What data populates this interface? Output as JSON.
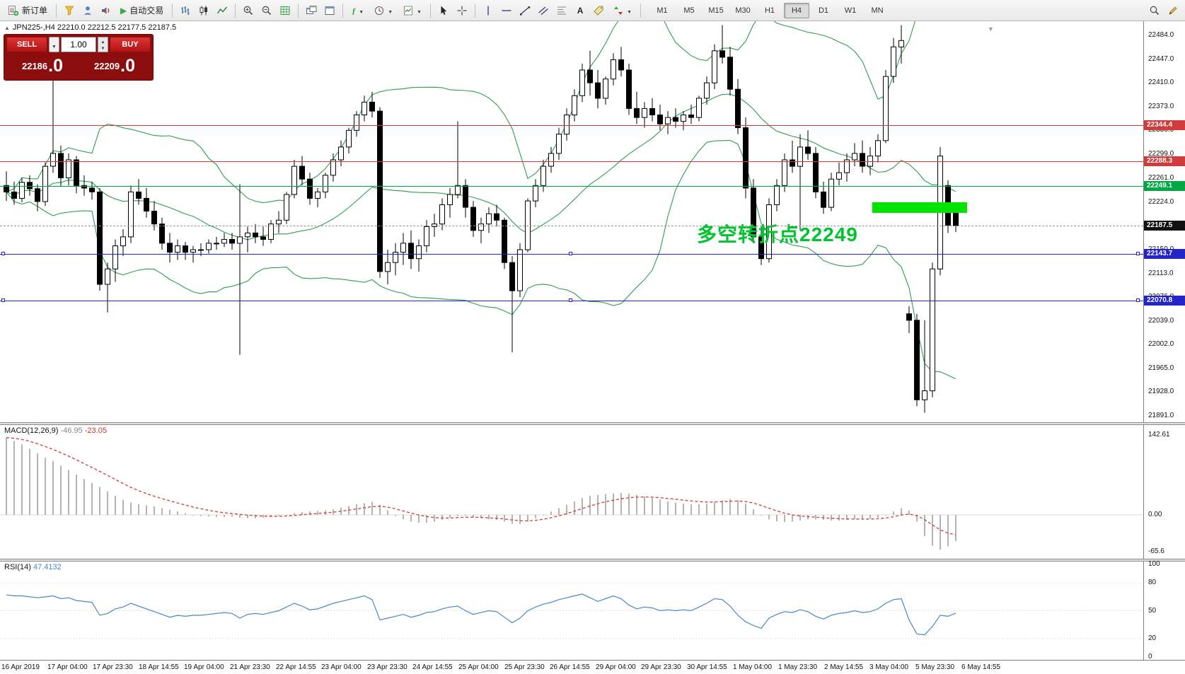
{
  "toolbar": {
    "new_order_label": "新订单",
    "autotrading_label": "自动交易",
    "timeframes": [
      "M1",
      "M5",
      "M15",
      "M30",
      "H1",
      "H4",
      "D1",
      "W1",
      "MN"
    ],
    "active_timeframe": "H4",
    "icons": [
      "new-order",
      "funnel",
      "profile",
      "sound",
      "autotrading-play",
      "bar-chart",
      "candlestick-chart",
      "line-chart",
      "zoom-in",
      "zoom-out",
      "grid",
      "tile-windows",
      "new-window",
      "indicators",
      "periods",
      "templates",
      "cursor",
      "crosshair",
      "vertical-line",
      "horizontal-line",
      "trendline",
      "channel",
      "fibonacci",
      "text",
      "label",
      "arrows",
      "search",
      "edit"
    ]
  },
  "chart": {
    "caption": "JPN225-,H4 22210.0 22212.5 22177.5 22187.5",
    "symbol": "JPN225-",
    "period": "H4",
    "annotation": "多空转折点22249",
    "trade_panel": {
      "sell_label": "SELL",
      "buy_label": "BUY",
      "volume": "1.00",
      "sell_price": "22186",
      "sell_frac": ".0",
      "buy_price": "22209",
      "buy_frac": ".0"
    }
  },
  "chart_data": {
    "type": "candlestick",
    "symbol": "JPN225-",
    "timeframe": "H4",
    "price_axis": {
      "top": 22484.0,
      "bottom": 21891.0,
      "step": 37.0
    },
    "price_ticks": [
      "22484.0",
      "22447.0",
      "22410.0",
      "22373.0",
      "22336.0",
      "22299.0",
      "22261.0",
      "22224.0",
      "22187.0",
      "22150.0",
      "22113.0",
      "22076.0",
      "22039.0",
      "22002.0",
      "21965.0",
      "21928.0",
      "21891.0"
    ],
    "current_price": 22187.5,
    "current_price_label": "22187.5",
    "bollinger": {
      "period": 20,
      "deviation": 2,
      "color": "#2e9e52"
    },
    "levels": [
      {
        "price": 22344.4,
        "label": "22344.4",
        "color": "#d23b3b",
        "selected": false
      },
      {
        "price": 22288.3,
        "label": "22288.3",
        "color": "#d23b3b",
        "selected": false
      },
      {
        "price": 22249.1,
        "label": "22249.1",
        "color": "#00a843",
        "selected": false
      },
      {
        "price": 22143.7,
        "label": "22143.7",
        "color": "#2424c8",
        "selected": true
      },
      {
        "price": 22070.8,
        "label": "22070.8",
        "color": "#2424c8",
        "selected": true
      }
    ],
    "candles": [
      [
        22250,
        22272,
        22226,
        22240
      ],
      [
        22240,
        22256,
        22220,
        22230
      ],
      [
        22230,
        22262,
        22224,
        22255
      ],
      [
        22255,
        22266,
        22234,
        22245
      ],
      [
        22245,
        22252,
        22210,
        22225
      ],
      [
        22225,
        22286,
        22218,
        22280
      ],
      [
        22280,
        22420,
        22270,
        22300
      ],
      [
        22300,
        22312,
        22248,
        22262
      ],
      [
        22262,
        22300,
        22250,
        22290
      ],
      [
        22290,
        22296,
        22238,
        22250
      ],
      [
        22250,
        22266,
        22234,
        22246
      ],
      [
        22246,
        22256,
        22228,
        22240
      ],
      [
        22240,
        22246,
        22086,
        22096
      ],
      [
        22096,
        22130,
        22052,
        22120
      ],
      [
        22120,
        22166,
        22100,
        22156
      ],
      [
        22156,
        22182,
        22140,
        22170
      ],
      [
        22170,
        22250,
        22160,
        22240
      ],
      [
        22240,
        22260,
        22220,
        22230
      ],
      [
        22230,
        22246,
        22200,
        22210
      ],
      [
        22210,
        22226,
        22180,
        22190
      ],
      [
        22190,
        22200,
        22150,
        22160
      ],
      [
        22160,
        22176,
        22130,
        22146
      ],
      [
        22146,
        22166,
        22134,
        22156
      ],
      [
        22156,
        22162,
        22134,
        22146
      ],
      [
        22146,
        22156,
        22130,
        22150
      ],
      [
        22150,
        22160,
        22140,
        22150
      ],
      [
        22150,
        22166,
        22144,
        22160
      ],
      [
        22160,
        22170,
        22150,
        22160
      ],
      [
        22160,
        22176,
        22154,
        22166
      ],
      [
        22166,
        22176,
        22150,
        22160
      ],
      [
        22160,
        22252,
        21986,
        22170
      ],
      [
        22170,
        22186,
        22146,
        22176
      ],
      [
        22176,
        22190,
        22160,
        22170
      ],
      [
        22170,
        22186,
        22156,
        22166
      ],
      [
        22166,
        22196,
        22160,
        22190
      ],
      [
        22190,
        22210,
        22176,
        22196
      ],
      [
        22196,
        22240,
        22190,
        22236
      ],
      [
        22236,
        22290,
        22230,
        22280
      ],
      [
        22280,
        22296,
        22250,
        22260
      ],
      [
        22260,
        22270,
        22220,
        22230
      ],
      [
        22230,
        22246,
        22216,
        22240
      ],
      [
        22240,
        22270,
        22230,
        22266
      ],
      [
        22266,
        22300,
        22256,
        22290
      ],
      [
        22290,
        22320,
        22280,
        22310
      ],
      [
        22310,
        22340,
        22300,
        22336
      ],
      [
        22336,
        22366,
        22326,
        22360
      ],
      [
        22360,
        22390,
        22350,
        22380
      ],
      [
        22380,
        22396,
        22356,
        22366
      ],
      [
        22366,
        22372,
        22106,
        22116
      ],
      [
        22116,
        22150,
        22096,
        22130
      ],
      [
        22130,
        22160,
        22110,
        22146
      ],
      [
        22146,
        22176,
        22126,
        22160
      ],
      [
        22160,
        22180,
        22120,
        22136
      ],
      [
        22136,
        22166,
        22116,
        22156
      ],
      [
        22156,
        22196,
        22146,
        22186
      ],
      [
        22186,
        22206,
        22170,
        22190
      ],
      [
        22190,
        22230,
        22180,
        22220
      ],
      [
        22220,
        22246,
        22200,
        22236
      ],
      [
        22236,
        22350,
        22230,
        22250
      ],
      [
        22250,
        22260,
        22200,
        22216
      ],
      [
        22216,
        22226,
        22170,
        22180
      ],
      [
        22180,
        22200,
        22160,
        22190
      ],
      [
        22190,
        22216,
        22176,
        22206
      ],
      [
        22206,
        22220,
        22186,
        22196
      ],
      [
        22196,
        22200,
        22120,
        22130
      ],
      [
        22130,
        22140,
        21990,
        22086
      ],
      [
        22086,
        22160,
        22076,
        22150
      ],
      [
        22150,
        22230,
        22146,
        22226
      ],
      [
        22226,
        22260,
        22216,
        22250
      ],
      [
        22250,
        22290,
        22240,
        22280
      ],
      [
        22280,
        22310,
        22270,
        22300
      ],
      [
        22300,
        22340,
        22290,
        22330
      ],
      [
        22330,
        22370,
        22320,
        22360
      ],
      [
        22360,
        22400,
        22350,
        22390
      ],
      [
        22390,
        22440,
        22380,
        22430
      ],
      [
        22430,
        22460,
        22390,
        22410
      ],
      [
        22410,
        22430,
        22370,
        22386
      ],
      [
        22386,
        22420,
        22376,
        22416
      ],
      [
        22416,
        22456,
        22406,
        22446
      ],
      [
        22446,
        22466,
        22420,
        22430
      ],
      [
        22430,
        22440,
        22360,
        22370
      ],
      [
        22370,
        22396,
        22346,
        22356
      ],
      [
        22356,
        22380,
        22340,
        22370
      ],
      [
        22370,
        22386,
        22350,
        22360
      ],
      [
        22360,
        22376,
        22336,
        22346
      ],
      [
        22346,
        22366,
        22330,
        22356
      ],
      [
        22356,
        22370,
        22340,
        22350
      ],
      [
        22350,
        22366,
        22336,
        22360
      ],
      [
        22360,
        22376,
        22346,
        22356
      ],
      [
        22356,
        22390,
        22350,
        22386
      ],
      [
        22386,
        22420,
        22376,
        22410
      ],
      [
        22410,
        22470,
        22400,
        22460
      ],
      [
        22460,
        22500,
        22440,
        22450
      ],
      [
        22450,
        22466,
        22390,
        22400
      ],
      [
        22400,
        22416,
        22330,
        22340
      ],
      [
        22340,
        22356,
        22230,
        22246
      ],
      [
        22246,
        22260,
        22160,
        22170
      ],
      [
        22170,
        22186,
        22126,
        22136
      ],
      [
        22136,
        22230,
        22130,
        22220
      ],
      [
        22220,
        22260,
        22210,
        22250
      ],
      [
        22250,
        22300,
        22240,
        22290
      ],
      [
        22290,
        22320,
        22270,
        22280
      ],
      [
        22280,
        22330,
        22180,
        22310
      ],
      [
        22310,
        22336,
        22290,
        22300
      ],
      [
        22300,
        22310,
        22230,
        22240
      ],
      [
        22240,
        22256,
        22206,
        22216
      ],
      [
        22216,
        22270,
        22210,
        22260
      ],
      [
        22260,
        22286,
        22250,
        22270
      ],
      [
        22270,
        22300,
        22256,
        22290
      ],
      [
        22290,
        22316,
        22280,
        22300
      ],
      [
        22300,
        22320,
        22270,
        22280
      ],
      [
        22280,
        22310,
        22266,
        22296
      ],
      [
        22296,
        22330,
        22286,
        22320
      ],
      [
        22320,
        22430,
        22316,
        22420
      ],
      [
        22420,
        22480,
        22410,
        22466
      ],
      [
        22466,
        22500,
        22440,
        22476
      ],
      [
        22050,
        22062,
        22020,
        22040
      ],
      [
        22040,
        22050,
        21906,
        21916
      ],
      [
        21916,
        22040,
        21896,
        21930
      ],
      [
        21930,
        22130,
        21920,
        22120
      ],
      [
        22120,
        22310,
        22110,
        22296
      ],
      [
        22250,
        22258,
        22176,
        22188
      ],
      [
        22210,
        22212.5,
        22177.5,
        22187.5
      ]
    ],
    "macd": {
      "label": "MACD(12,26,9)",
      "value_main": "-46.95",
      "value_signal": "-23.05",
      "scale_max": "142.61",
      "scale_zero": "0.00",
      "scale_min": "-65.6",
      "values": [
        138,
        132,
        126,
        118,
        110,
        102,
        96,
        88,
        80,
        72,
        64,
        57,
        50,
        42,
        34,
        27,
        22,
        19,
        17,
        15,
        12,
        9,
        6,
        3,
        0,
        -2,
        -3,
        -4,
        -4,
        -3,
        -5,
        -6,
        -6,
        -5,
        -4,
        -2,
        0,
        3,
        5,
        6,
        7,
        8,
        10,
        13,
        16,
        19,
        21,
        23,
        18,
        8,
        -2,
        -8,
        -12,
        -14,
        -14,
        -12,
        -9,
        -5,
        -2,
        -2,
        -4,
        -6,
        -8,
        -9,
        -12,
        -16,
        -16,
        -12,
        -6,
        0,
        6,
        12,
        18,
        24,
        30,
        34,
        36,
        37,
        38,
        39,
        38,
        36,
        33,
        30,
        27,
        24,
        22,
        20,
        19,
        19,
        20,
        23,
        26,
        28,
        26,
        20,
        10,
        0,
        -8,
        -12,
        -13,
        -12,
        -10,
        -8,
        -8,
        -9,
        -10,
        -10,
        -9,
        -8,
        -8,
        -7,
        -5,
        0,
        6,
        12,
        8,
        -12,
        -38,
        -55,
        -62,
        -56,
        -46.95
      ]
    },
    "rsi": {
      "label": "RSI(14)",
      "value": "47.4132",
      "scale": [
        "100",
        "80",
        "50",
        "20",
        "0"
      ],
      "guides": [
        80,
        50,
        20
      ],
      "values": [
        67,
        66,
        66,
        65,
        64,
        65,
        66,
        63,
        64,
        61,
        60,
        59,
        45,
        47,
        52,
        54,
        58,
        55,
        52,
        49,
        46,
        43,
        45,
        44,
        45,
        45,
        46,
        47,
        48,
        47,
        42,
        46,
        47,
        46,
        48,
        50,
        54,
        58,
        55,
        51,
        52,
        55,
        58,
        60,
        62,
        64,
        66,
        62,
        40,
        42,
        44,
        46,
        43,
        45,
        48,
        49,
        52,
        54,
        55,
        50,
        46,
        48,
        50,
        49,
        43,
        37,
        42,
        50,
        54,
        57,
        59,
        62,
        64,
        66,
        68,
        64,
        60,
        63,
        66,
        63,
        56,
        52,
        54,
        53,
        50,
        51,
        50,
        51,
        50,
        54,
        58,
        63,
        62,
        55,
        45,
        38,
        34,
        31,
        42,
        46,
        49,
        48,
        51,
        49,
        44,
        41,
        45,
        47,
        48,
        50,
        48,
        49,
        52,
        58,
        62,
        63,
        40,
        25,
        24,
        33,
        45,
        44,
        47.41
      ]
    },
    "time_labels": [
      "16 Apr 2019",
      "17 Apr 04:00",
      "17 Apr 23:30",
      "18 Apr 14:55",
      "19 Apr 04:00",
      "21 Apr 23:30",
      "22 Apr 14:55",
      "23 Apr 04:00",
      "23 Apr 23:30",
      "24 Apr 14:55",
      "25 Apr 04:00",
      "25 Apr 23:30",
      "26 Apr 14:55",
      "29 Apr 04:00",
      "29 Apr 23:30",
      "30 Apr 14:55",
      "1 May 04:00",
      "1 May 23:30",
      "2 May 14:55",
      "3 May 04:00",
      "5 May 23:30",
      "6 May 14:55"
    ]
  }
}
